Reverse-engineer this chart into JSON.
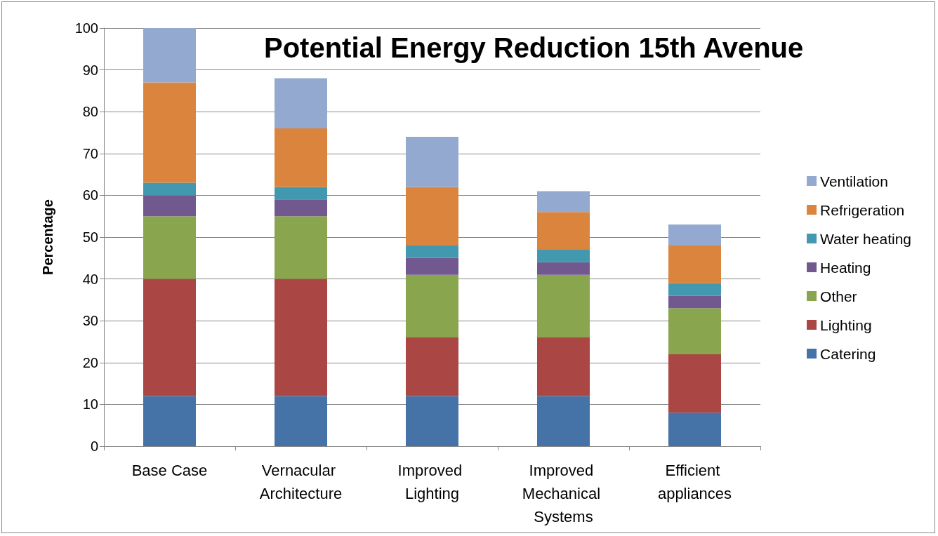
{
  "chart_data": {
    "type": "bar",
    "title": "Potential Energy Reduction 15th Avenue",
    "ylabel": "Percentage",
    "categories": [
      "Base Case",
      "Vernacular Architecture",
      "Improved Lighting",
      "Improved Mechanical Systems",
      "Efficient appliances"
    ],
    "stacked": true,
    "series": [
      {
        "name": "Catering",
        "color": "#4572a7",
        "values": [
          12,
          12,
          12,
          12,
          8
        ]
      },
      {
        "name": "Lighting",
        "color": "#aa4643",
        "values": [
          28,
          28,
          14,
          14,
          14
        ]
      },
      {
        "name": "Other",
        "color": "#89a54e",
        "values": [
          15,
          15,
          15,
          15,
          11
        ]
      },
      {
        "name": "Heating",
        "color": "#71588f",
        "values": [
          5,
          4,
          4,
          3,
          3
        ]
      },
      {
        "name": "Water heating",
        "color": "#4198af",
        "values": [
          3,
          3,
          3,
          3,
          3
        ]
      },
      {
        "name": "Refrigeration",
        "color": "#db843d",
        "values": [
          24,
          14,
          14,
          9,
          9
        ]
      },
      {
        "name": "Ventilation",
        "color": "#93a9cf",
        "values": [
          13,
          12,
          12,
          5,
          5
        ]
      }
    ],
    "ylim": [
      0,
      100
    ],
    "yticks": [
      0,
      10,
      20,
      30,
      40,
      50,
      60,
      70,
      80,
      90,
      100
    ],
    "grid": "y",
    "legend": "right"
  }
}
